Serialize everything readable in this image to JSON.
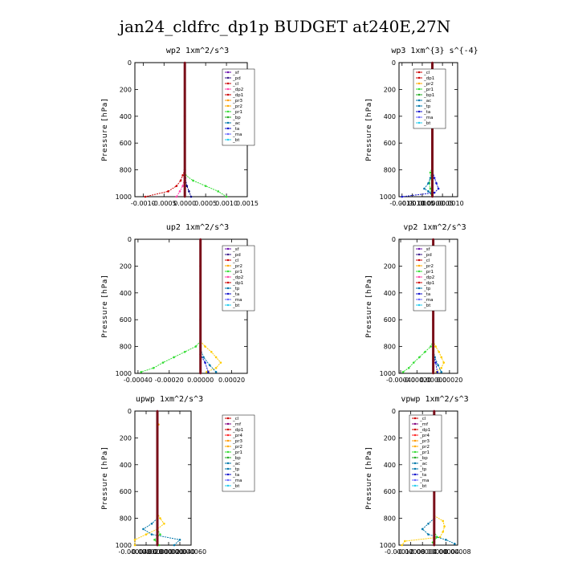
{
  "page": {
    "title": "jan24_cldfrc_dp1p  BUDGET at240E,27N"
  },
  "chart_data": [
    {
      "type": "line",
      "title": "wp2  1xm^2/s^3",
      "ylabel": "Pressure [hPa]",
      "xlim": [
        -0.0012,
        0.0015
      ],
      "ylim": [
        1000,
        0
      ],
      "yticks": [
        0,
        200,
        400,
        600,
        800,
        1000
      ],
      "xtick_labels": [
        "-0.0010",
        "-0.0005",
        "0.0000",
        "0.0005",
        "0.0010",
        "0.0015"
      ],
      "xtick_values": [
        -0.001,
        -0.0005,
        0.0,
        0.0005,
        0.001,
        0.0015
      ],
      "legend": [
        "_sf",
        "_pd",
        "_cl",
        "_dp2",
        "_dp1",
        "_pr3",
        "_pr2",
        "_pr1",
        "_bp",
        "_ac",
        "_ta",
        "_ma",
        "_bt"
      ],
      "series": [
        {
          "name": "_dp1",
          "color": "#cc0000",
          "y": [
            800,
            840,
            880,
            920,
            960,
            1000
          ],
          "x": [
            0,
            -5e-05,
            -0.0001,
            -0.0002,
            -0.0004,
            -0.00095
          ]
        },
        {
          "name": "_pr1",
          "color": "#33dd33",
          "y": [
            800,
            840,
            880,
            920,
            960,
            1000
          ],
          "x": [
            0,
            2e-05,
            0.0002,
            0.0005,
            0.0008,
            0.001
          ]
        },
        {
          "name": "_ta",
          "color": "#000080",
          "y": [
            800,
            860,
            920,
            960,
            1000
          ],
          "x": [
            0,
            1e-05,
            5e-05,
            0.0001,
            0.00015
          ]
        },
        {
          "name": "_dp2",
          "color": "#ff44aa",
          "y": [
            800,
            860,
            920,
            960,
            1000
          ],
          "x": [
            0,
            -1e-05,
            -5e-05,
            -0.00012,
            -0.0002
          ]
        },
        {
          "name": "_bt",
          "color": "#7a0f1a",
          "y": [
            0,
            200,
            400,
            600,
            800,
            1000
          ],
          "x": [
            0,
            0,
            0,
            0,
            0,
            0
          ]
        }
      ]
    },
    {
      "type": "line",
      "title": "wp3  1xm^{3} s^{-4}",
      "ylabel": "Pressure [hPa]",
      "xlim": [
        -0.00165,
        0.00125
      ],
      "ylim": [
        1000,
        0
      ],
      "yticks": [
        0,
        200,
        400,
        600,
        800,
        1000
      ],
      "xtick_labels": [
        "-0.0015",
        "-0.0010",
        "-0.0005",
        "0.0000",
        "0.0005",
        "0.0010"
      ],
      "xtick_values": [
        -0.0015,
        -0.001,
        -0.0005,
        0.0,
        0.0005,
        0.001
      ],
      "legend": [
        "_cl",
        "_dp1",
        "_pr2",
        "_pr1",
        "_bp1",
        "_ac",
        "_tp",
        "_ta",
        "_ma",
        "_bt"
      ],
      "series": [
        {
          "name": "_ac",
          "color": "#33dd33",
          "y": [
            780,
            820,
            860,
            900,
            940,
            980
          ],
          "x": [
            0,
            -0.0001,
            -8e-05,
            -0.00015,
            -0.0001,
            -5e-05
          ]
        },
        {
          "name": "_tp",
          "color": "#0077aa",
          "y": [
            820,
            860,
            900,
            940,
            960,
            980
          ],
          "x": [
            0,
            -0.0001,
            -0.0002,
            -0.0004,
            -0.0002,
            0
          ]
        },
        {
          "name": "_ta",
          "color": "#1111cc",
          "y": [
            800,
            860,
            900,
            940,
            970,
            1000
          ],
          "x": [
            0,
            0.0001,
            0.0002,
            0.0003,
            0.0001,
            -0.0015
          ]
        },
        {
          "name": "_bt",
          "color": "#7a0f1a",
          "y": [
            0,
            200,
            400,
            600,
            800,
            1000
          ],
          "x": [
            0,
            0,
            0,
            0,
            0,
            0
          ]
        }
      ]
    },
    {
      "type": "line",
      "title": "up2  1xm^2/s^3",
      "ylabel": "Pressure [hPa]",
      "xlim": [
        -0.00042,
        0.0003
      ],
      "ylim": [
        1000,
        0
      ],
      "yticks": [
        0,
        200,
        400,
        600,
        800,
        1000
      ],
      "xtick_labels": [
        "-0.00040",
        "-0.00020",
        "0.00000",
        "0.00020"
      ],
      "xtick_values": [
        -0.0004,
        -0.0002,
        0.0,
        0.0002
      ],
      "legend": [
        "_sf",
        "_pd",
        "_cl",
        "_pr2",
        "_pr1",
        "_dp2",
        "_dp1",
        "_tp",
        "_ta",
        "_ma",
        "_bt"
      ],
      "series": [
        {
          "name": "_dp1",
          "color": "#33dd33",
          "y": [
            760,
            800,
            840,
            880,
            920,
            960,
            990
          ],
          "x": [
            0,
            -3e-05,
            -0.0001,
            -0.00017,
            -0.00024,
            -0.0003,
            -0.00038
          ]
        },
        {
          "name": "_pr1",
          "color": "#ffcc00",
          "y": [
            760,
            800,
            840,
            880,
            920,
            960,
            990
          ],
          "x": [
            0,
            3e-05,
            7e-05,
            0.0001,
            0.00013,
            0.0001,
            4e-05
          ]
        },
        {
          "name": "_tp",
          "color": "#0077aa",
          "y": [
            820,
            880,
            940,
            990
          ],
          "x": [
            0,
            2e-05,
            6e-05,
            0.0001
          ]
        },
        {
          "name": "_ta",
          "color": "#1111cc",
          "y": [
            860,
            920,
            990
          ],
          "x": [
            0,
            3e-05,
            5e-05
          ]
        },
        {
          "name": "_bt",
          "color": "#7a0f1a",
          "y": [
            0,
            200,
            400,
            600,
            800,
            1000
          ],
          "x": [
            0,
            0,
            0,
            0,
            0,
            0
          ]
        }
      ]
    },
    {
      "type": "line",
      "title": "vp2  1xm^2/s^3",
      "ylabel": "Pressure [hPa]",
      "xlim": [
        -0.00042,
        0.0003
      ],
      "ylim": [
        1000,
        0
      ],
      "yticks": [
        0,
        200,
        400,
        600,
        800,
        1000
      ],
      "xtick_labels": [
        "-0.00040",
        "-0.00020",
        "0.00000",
        "0.00020"
      ],
      "xtick_values": [
        -0.0004,
        -0.0002,
        0.0,
        0.0002
      ],
      "legend": [
        "_sf",
        "_pd",
        "_cl",
        "_pr2",
        "_pr1",
        "_dp2",
        "_dp1",
        "_tp",
        "_ta",
        "_ma",
        "_bt"
      ],
      "series": [
        {
          "name": "_dp1",
          "color": "#33dd33",
          "y": [
            760,
            800,
            840,
            880,
            920,
            960,
            990
          ],
          "x": [
            0,
            -3e-05,
            -0.0001,
            -0.00017,
            -0.00024,
            -0.0003,
            -0.00037
          ]
        },
        {
          "name": "_pr1",
          "color": "#ffcc00",
          "y": [
            760,
            800,
            840,
            880,
            920,
            960,
            990
          ],
          "x": [
            0,
            3e-05,
            7e-05,
            0.0001,
            0.00013,
            0.0001,
            4e-05
          ]
        },
        {
          "name": "_tp",
          "color": "#0077aa",
          "y": [
            820,
            880,
            940,
            990
          ],
          "x": [
            0,
            2e-05,
            6e-05,
            0.0001
          ]
        },
        {
          "name": "_ta",
          "color": "#1111cc",
          "y": [
            860,
            920,
            990
          ],
          "x": [
            0,
            3e-05,
            5e-05
          ]
        },
        {
          "name": "_bt",
          "color": "#7a0f1a",
          "y": [
            0,
            200,
            400,
            600,
            800,
            1000
          ],
          "x": [
            0,
            0,
            0,
            0,
            0,
            0
          ]
        }
      ]
    },
    {
      "type": "line",
      "title": "upwp  1xm^2/s^3",
      "ylabel": "Pressure [hPa]",
      "xlim": [
        -4e-05,
        6e-05
      ],
      "ylim": [
        1000,
        0
      ],
      "yticks": [
        0,
        200,
        400,
        600,
        800,
        1000
      ],
      "xtick_labels": [
        "-0.000040",
        "-0.000020",
        "0.000000",
        "0.000020",
        "0.000040",
        "0.000060"
      ],
      "xtick_values": [
        -4e-05,
        -2e-05,
        0.0,
        2e-05,
        4e-05,
        6e-05
      ],
      "legend": [
        "_cl",
        "_mf",
        "_dp1",
        "_pr4",
        "_pr3",
        "_pr2",
        "_pr1",
        "_bp",
        "_ac",
        "_tp",
        "_ta",
        "_ma",
        "_bt"
      ],
      "series": [
        {
          "name": "_pr1",
          "color": "#ffcc00",
          "y": [
            760,
            800,
            840,
            880,
            920,
            960,
            1000
          ],
          "x": [
            0,
            5e-06,
            1.2e-05,
            0,
            -2e-05,
            -4e-05,
            -4e-05
          ]
        },
        {
          "name": "_tp",
          "color": "#0077aa",
          "y": [
            800,
            840,
            880,
            920,
            960,
            1000
          ],
          "x": [
            0,
            -1e-05,
            -2.5e-05,
            -1e-05,
            4e-05,
            3e-05
          ]
        },
        {
          "name": "_ac",
          "color": "#33dd33",
          "y": [
            880,
            920,
            960,
            1000
          ],
          "x": [
            0,
            5e-06,
            -5e-06,
            3e-06
          ]
        },
        {
          "name": "_mf",
          "color": "#800080",
          "y": [
            0,
            200,
            400,
            600,
            800,
            1000
          ],
          "x": [
            0,
            0,
            0,
            0,
            0,
            0
          ]
        },
        {
          "name": "_pr2",
          "color": "#ffaa00",
          "y": [
            60,
            100,
            140
          ],
          "x": [
            0,
            2e-06,
            0
          ]
        },
        {
          "name": "_bt",
          "color": "#7a0f1a",
          "y": [
            0,
            200,
            400,
            600,
            800,
            1000
          ],
          "x": [
            0,
            0,
            0,
            0,
            0,
            0
          ]
        }
      ]
    },
    {
      "type": "line",
      "title": "vpwp  1xm^2/s^3",
      "ylabel": "Pressure [hPa]",
      "xlim": [
        -0.00012,
        8e-05
      ],
      "ylim": [
        1000,
        0
      ],
      "yticks": [
        0,
        200,
        400,
        600,
        800,
        1000
      ],
      "xtick_labels": [
        "-0.00012",
        "-0.00008",
        "-0.00004",
        "0.00000",
        "0.00004",
        "0.00008"
      ],
      "xtick_values": [
        -0.00012,
        -8e-05,
        -4e-05,
        0.0,
        4e-05,
        8e-05
      ],
      "legend": [
        "_cl",
        "_mf",
        "_dp1",
        "_pr4",
        "_pr3",
        "_pr2",
        "_pr1",
        "_bp",
        "_ac",
        "_tp",
        "_ta",
        "_ma",
        "_bt"
      ],
      "series": [
        {
          "name": "_pr1",
          "color": "#ffcc00",
          "y": [
            780,
            820,
            860,
            900,
            940,
            970,
            1000
          ],
          "x": [
            0,
            3e-05,
            3.5e-05,
            3e-05,
            2e-05,
            -0.0001,
            -0.00011
          ]
        },
        {
          "name": "_tp",
          "color": "#0077aa",
          "y": [
            800,
            840,
            880,
            920,
            960,
            990
          ],
          "x": [
            0,
            -2e-05,
            -4e-05,
            -2e-05,
            4e-05,
            7e-05
          ]
        },
        {
          "name": "_ac",
          "color": "#33dd33",
          "y": [
            900,
            940,
            980
          ],
          "x": [
            0,
            1e-05,
            -5e-06
          ]
        },
        {
          "name": "_mf",
          "color": "#800080",
          "y": [
            0,
            200,
            400,
            600,
            800,
            1000
          ],
          "x": [
            0,
            0,
            0,
            0,
            0,
            0
          ]
        },
        {
          "name": "_bt",
          "color": "#7a0f1a",
          "y": [
            0,
            200,
            400,
            600,
            800,
            1000
          ],
          "x": [
            0,
            0,
            0,
            0,
            0,
            0
          ]
        }
      ]
    }
  ]
}
